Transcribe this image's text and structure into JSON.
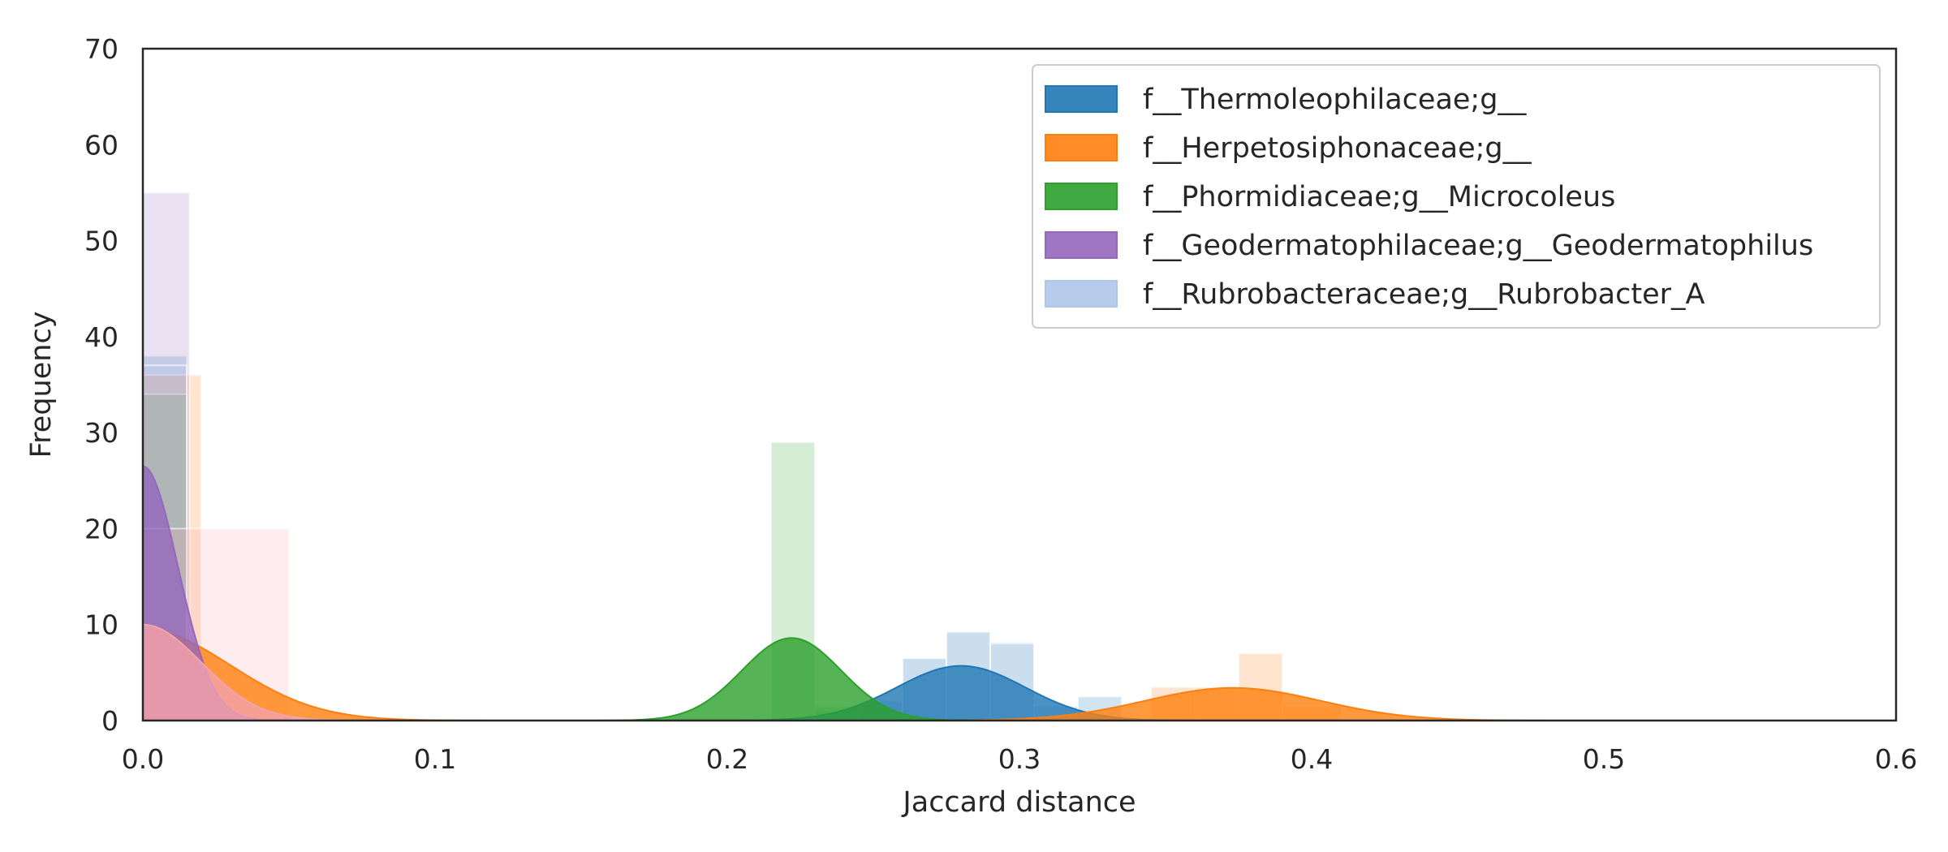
{
  "chart_data": {
    "type": "histogram",
    "title": "",
    "xlabel": "Jaccard distance",
    "ylabel": "Frequency",
    "xlim": [
      0.0,
      0.6
    ],
    "ylim": [
      0,
      70
    ],
    "xticks": [
      "0.0",
      "0.1",
      "0.2",
      "0.3",
      "0.4",
      "0.5",
      "0.6"
    ],
    "yticks": [
      "0",
      "10",
      "20",
      "30",
      "40",
      "50",
      "60",
      "70"
    ],
    "grid": false,
    "legend_position": "upper right",
    "series": [
      {
        "name": "f__Thermoleophilaceae;g__",
        "color": "#1f77b4",
        "histogram": [
          {
            "x0": 0.0,
            "x1": 0.015,
            "count": 38
          },
          {
            "x0": 0.015,
            "x1": 0.02,
            "count": 4
          },
          {
            "x0": 0.23,
            "x1": 0.245,
            "count": 1
          },
          {
            "x0": 0.245,
            "x1": 0.26,
            "count": 2
          },
          {
            "x0": 0.26,
            "x1": 0.275,
            "count": 6.5
          },
          {
            "x0": 0.275,
            "x1": 0.29,
            "count": 9.2
          },
          {
            "x0": 0.29,
            "x1": 0.305,
            "count": 8
          },
          {
            "x0": 0.305,
            "x1": 0.32,
            "count": 1.5
          },
          {
            "x0": 0.32,
            "x1": 0.335,
            "count": 2.5
          }
        ],
        "kde": {
          "peak_x": 0.28,
          "peak_y": 5.7,
          "sigma": 0.022
        }
      },
      {
        "name": "f__Herpetosiphonaceae;g__",
        "color": "#ff7f0e",
        "histogram": [
          {
            "x0": 0.0,
            "x1": 0.02,
            "count": 36
          },
          {
            "x0": 0.345,
            "x1": 0.36,
            "count": 3.5
          },
          {
            "x0": 0.36,
            "x1": 0.375,
            "count": 3.5
          },
          {
            "x0": 0.375,
            "x1": 0.39,
            "count": 7
          },
          {
            "x0": 0.39,
            "x1": 0.41,
            "count": 1.5
          }
        ],
        "kde": {
          "peak_x": 0.373,
          "peak_y": 3.4,
          "sigma": 0.03
        }
      },
      {
        "name": "f__Phormidiaceae;g__Microcoleus",
        "color": "#2ca02c",
        "histogram": [
          {
            "x0": 0.0,
            "x1": 0.015,
            "count": 34
          },
          {
            "x0": 0.215,
            "x1": 0.23,
            "count": 29
          },
          {
            "x0": 0.23,
            "x1": 0.245,
            "count": 1.5
          },
          {
            "x0": 0.245,
            "x1": 0.26,
            "count": 1
          }
        ],
        "kde": {
          "peak_x": 0.222,
          "peak_y": 8.6,
          "sigma": 0.017
        }
      },
      {
        "name": "f__Geodermatophilaceae;g__Geodermatophilus",
        "color": "#9467bd",
        "histogram": [
          {
            "x0": 0.0,
            "x1": 0.016,
            "count": 55
          },
          {
            "x0": 0.016,
            "x1": 0.02,
            "count": 2
          }
        ],
        "kde": {
          "peak_x": 0.0,
          "peak_y": 26.5,
          "sigma": 0.012
        }
      },
      {
        "name": "f__Rubrobacteraceae;g__Rubrobacter_A",
        "color": "#aec7e8",
        "histogram": [
          {
            "x0": 0.0,
            "x1": 0.015,
            "count": 37
          },
          {
            "x0": 0.26,
            "x1": 0.275,
            "count": 6.5
          },
          {
            "x0": 0.275,
            "x1": 0.29,
            "count": 9.3
          },
          {
            "x0": 0.29,
            "x1": 0.305,
            "count": 8.2
          }
        ],
        "kde": null
      }
    ],
    "extra_marks": [
      {
        "color": "#f4a3ad",
        "histogram": [
          {
            "x0": 0.0,
            "x1": 0.05,
            "count": 20
          }
        ],
        "kde": {
          "peak_x": 0.0,
          "peak_y": 10,
          "sigma": 0.02
        }
      }
    ]
  }
}
